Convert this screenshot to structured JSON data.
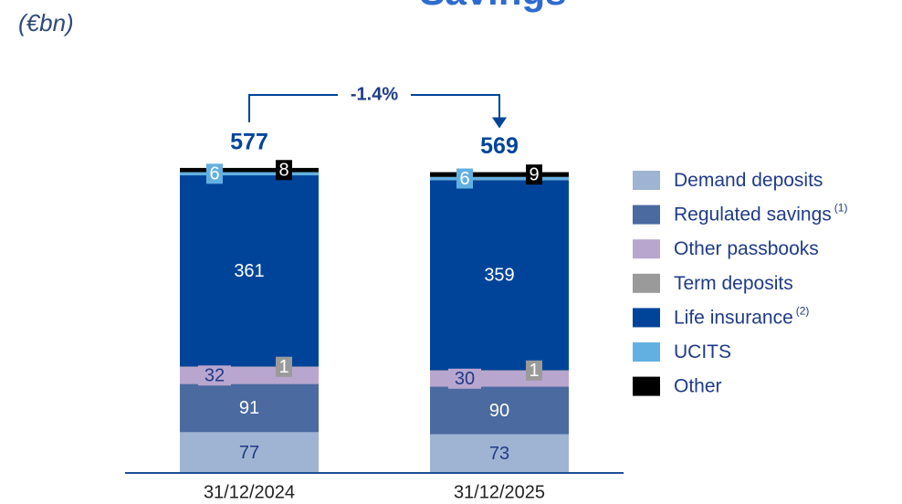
{
  "chart_data": {
    "type": "stacked_bar",
    "title": "Savings",
    "subtitle": "(€bn)",
    "annotation": "-1.4%",
    "categories": [
      "31/12/2024",
      "31/12/2025"
    ],
    "totals": [
      577,
      569
    ],
    "ylim": [
      0,
      900
    ],
    "series": [
      {
        "name": "Demand deposits",
        "color": "#9fb3d3",
        "values": [
          77,
          73
        ]
      },
      {
        "name": "Regulated savings",
        "footnote": "(1)",
        "color": "#4a6aa0",
        "values": [
          91,
          90
        ]
      },
      {
        "name": "Other passbooks",
        "color": "#b9a6cf",
        "values": [
          32,
          30
        ]
      },
      {
        "name": "Term deposits",
        "color": "#9a9a9a",
        "values": [
          1,
          1
        ]
      },
      {
        "name": "Life insurance",
        "footnote": "(2)",
        "color": "#00449a",
        "values": [
          361,
          359
        ]
      },
      {
        "name": "UCITS",
        "color": "#62b0e2",
        "values": [
          6,
          6
        ]
      },
      {
        "name": "Other",
        "color": "#000000",
        "values": [
          8,
          9
        ]
      }
    ],
    "legend": "right"
  }
}
